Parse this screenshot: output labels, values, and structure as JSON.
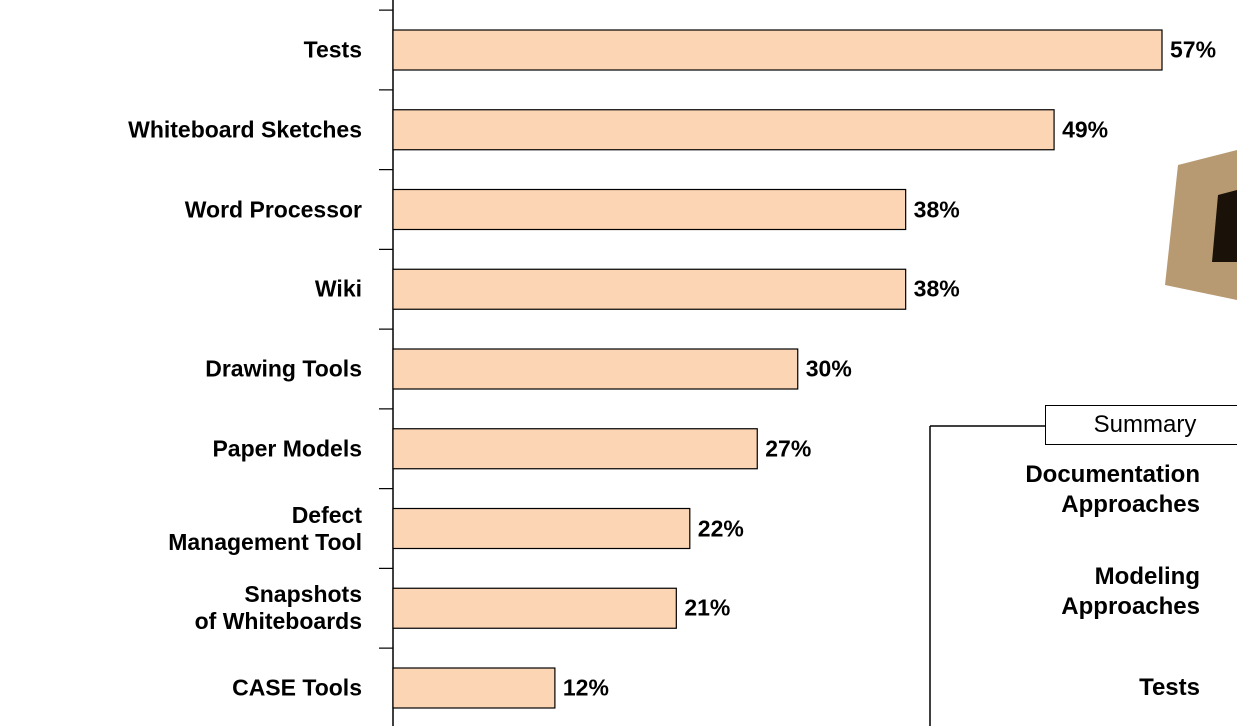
{
  "chart_data": {
    "type": "bar",
    "orientation": "horizontal",
    "categories": [
      "Tests",
      "Whiteboard Sketches",
      "Word Processor",
      "Wiki",
      "Drawing Tools",
      "Paper Models",
      "Defect\nManagement Tool",
      "Snapshots\nof Whiteboards",
      "CASE Tools"
    ],
    "values": [
      57,
      49,
      38,
      38,
      30,
      27,
      22,
      21,
      12
    ],
    "value_labels": [
      "57%",
      "49%",
      "38%",
      "38%",
      "30%",
      "27%",
      "22%",
      "21%",
      "12%"
    ],
    "color": "#fcd5b4"
  },
  "summary": {
    "title": "Summary",
    "items": [
      "Documentation\nApproaches",
      "Modeling\nApproaches",
      "Tests"
    ]
  }
}
